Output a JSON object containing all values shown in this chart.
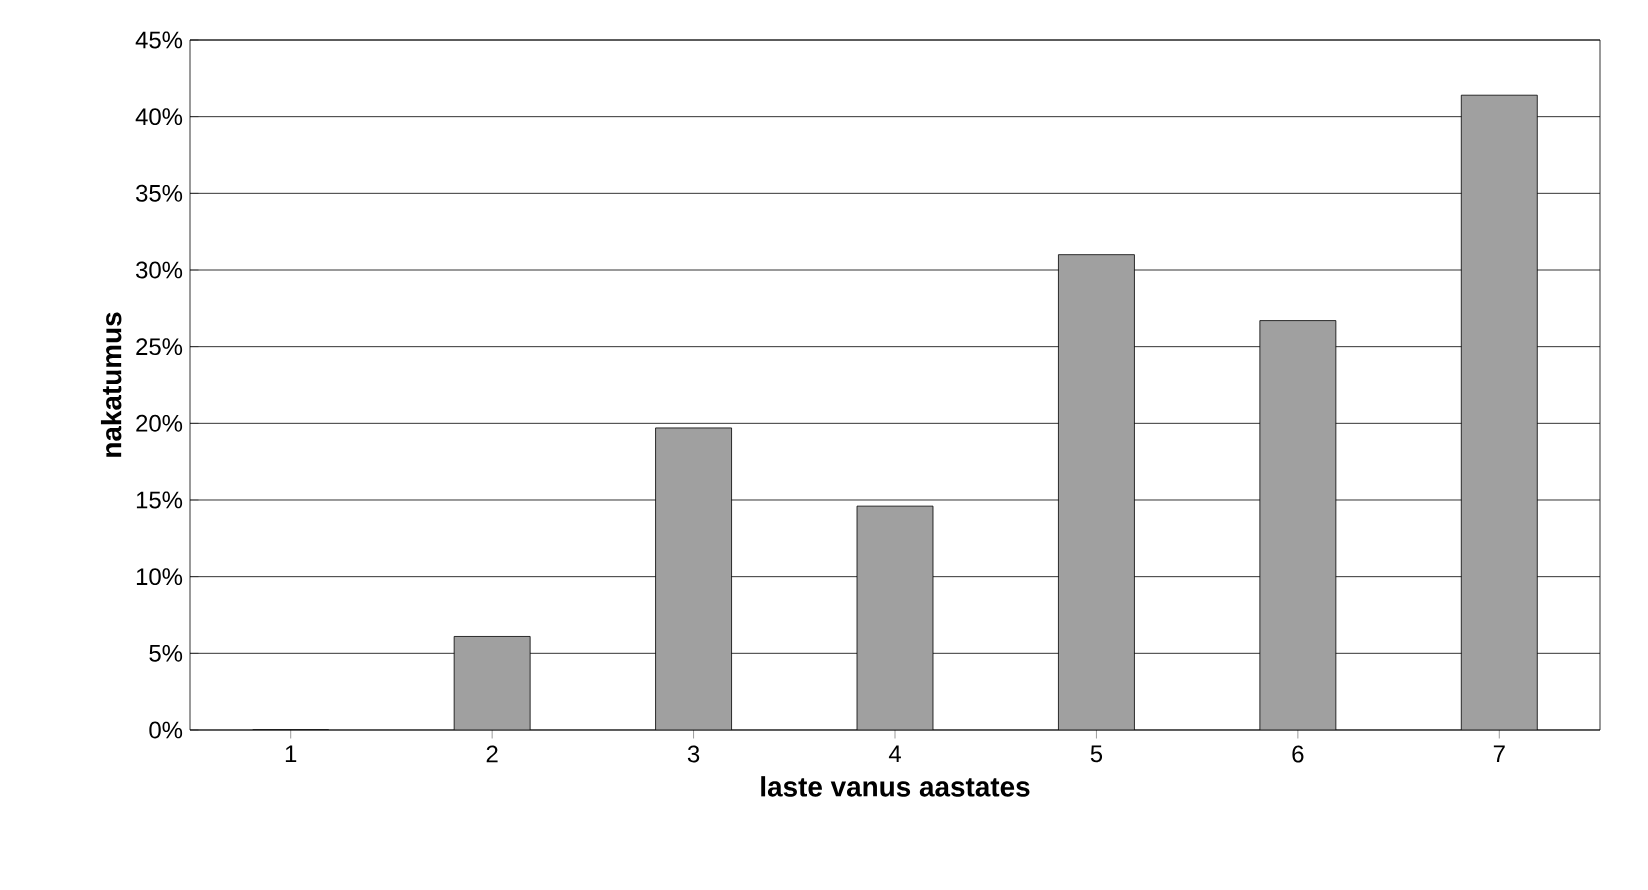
{
  "chart_data": {
    "type": "bar",
    "xlabel": "laste vanus aastates",
    "ylabel": "nakatumus",
    "categories": [
      "1",
      "2",
      "3",
      "4",
      "5",
      "6",
      "7"
    ],
    "values": [
      0,
      6.1,
      19.7,
      14.6,
      31.0,
      26.7,
      41.4
    ],
    "color": "#a0a0a0",
    "ylim": [
      0,
      45
    ],
    "yticks": [
      {
        "value": 0,
        "label": "0%"
      },
      {
        "value": 5,
        "label": "5%"
      },
      {
        "value": 10,
        "label": "10%"
      },
      {
        "value": 15,
        "label": "15%"
      },
      {
        "value": 20,
        "label": "20%"
      },
      {
        "value": 25,
        "label": "25%"
      },
      {
        "value": 30,
        "label": "30%"
      },
      {
        "value": 35,
        "label": "35%"
      },
      {
        "value": 40,
        "label": "40%"
      },
      {
        "value": 45,
        "label": "45%"
      }
    ],
    "grid": "y"
  }
}
